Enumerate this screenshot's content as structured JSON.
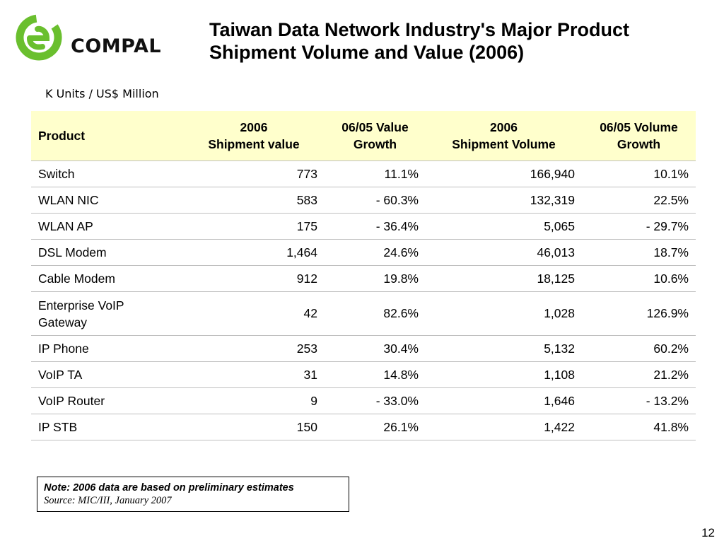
{
  "logo": {
    "text": "COMPAL",
    "icon": "compal-e-logo-icon",
    "color": "#6abf2e"
  },
  "title": {
    "line1": "Taiwan Data Network Industry's Major Product",
    "line2": "Shipment Volume and Value (2006)"
  },
  "units": "K Units / US$ Million",
  "table": {
    "headers": {
      "product": "Product",
      "value_year": "2006",
      "value_label": "Shipment value",
      "value_growth_1": "06/05 Value",
      "value_growth_2": "Growth",
      "volume_year": "2006",
      "volume_label": "Shipment Volume",
      "volume_growth_1": "06/05 Volume",
      "volume_growth_2": "Growth"
    },
    "header_bg": "#ffffcc",
    "rows": [
      {
        "product": "Switch",
        "value": "773",
        "value_growth": "11.1%",
        "volume": "166,940",
        "volume_growth": "10.1%"
      },
      {
        "product": "WLAN NIC",
        "value": "583",
        "value_growth": "- 60.3%",
        "volume": "132,319",
        "volume_growth": "22.5%"
      },
      {
        "product": "WLAN AP",
        "value": "175",
        "value_growth": "- 36.4%",
        "volume": "5,065",
        "volume_growth": "- 29.7%"
      },
      {
        "product": "DSL Modem",
        "value": "1,464",
        "value_growth": "24.6%",
        "volume": "46,013",
        "volume_growth": "18.7%"
      },
      {
        "product": "Cable Modem",
        "value": "912",
        "value_growth": "19.8%",
        "volume": "18,125",
        "volume_growth": "10.6%"
      },
      {
        "product_line1": "Enterprise VoIP",
        "product_line2": "Gateway",
        "value": "42",
        "value_growth": "82.6%",
        "volume": "1,028",
        "volume_growth": "126.9%"
      },
      {
        "product": "IP Phone",
        "value": "253",
        "value_growth": "30.4%",
        "volume": "5,132",
        "volume_growth": "60.2%"
      },
      {
        "product": "VoIP TA",
        "value": "31",
        "value_growth": "14.8%",
        "volume": "1,108",
        "volume_growth": "21.2%"
      },
      {
        "product": "VoIP Router",
        "value": "9",
        "value_growth": "- 33.0%",
        "volume": "1,646",
        "volume_growth": "- 13.2%"
      },
      {
        "product": "IP STB",
        "value": "150",
        "value_growth": "26.1%",
        "volume": "1,422",
        "volume_growth": "41.8%"
      }
    ]
  },
  "note": "Note: 2006 data are based on preliminary estimates",
  "source": "Source: MIC/III, January 2007",
  "page_number": "12"
}
